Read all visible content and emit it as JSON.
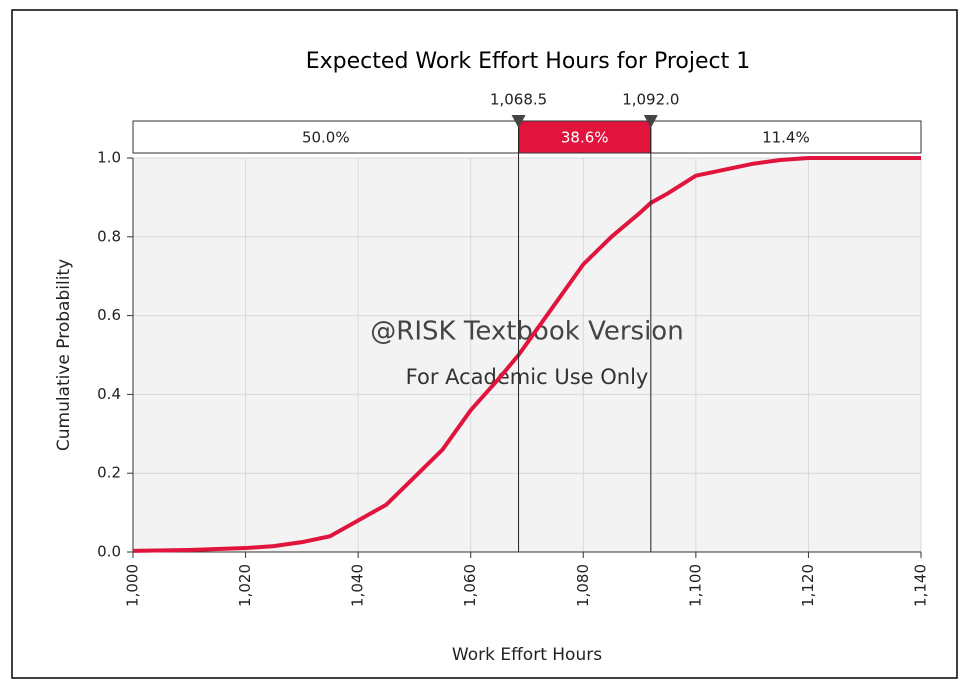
{
  "chart_data": {
    "type": "line",
    "title": "Expected Work Effort Hours for Project 1",
    "xlabel": "Work Effort Hours",
    "ylabel": "Cumulative  Probability",
    "annotations": [
      "@RISK Textbook Version",
      "For Academic Use Only"
    ],
    "x": [
      1000,
      1010,
      1020,
      1025,
      1030,
      1035,
      1040,
      1045,
      1050,
      1055,
      1060,
      1065,
      1068.5,
      1070,
      1075,
      1080,
      1085,
      1090,
      1092,
      1095,
      1100,
      1105,
      1110,
      1115,
      1120,
      1140
    ],
    "values": [
      0.003,
      0.005,
      0.01,
      0.015,
      0.025,
      0.04,
      0.08,
      0.12,
      0.19,
      0.26,
      0.36,
      0.44,
      0.5,
      0.53,
      0.63,
      0.73,
      0.8,
      0.86,
      0.886,
      0.91,
      0.955,
      0.97,
      0.985,
      0.995,
      1.0,
      1.0
    ],
    "color": "#e0143c",
    "xlim": [
      1000,
      1140
    ],
    "xticks": [
      {
        "value": 1000,
        "label": "1,000"
      },
      {
        "value": 1020,
        "label": "1,020"
      },
      {
        "value": 1040,
        "label": "1,040"
      },
      {
        "value": 1060,
        "label": "1,060"
      },
      {
        "value": 1080,
        "label": "1,080"
      },
      {
        "value": 1100,
        "label": "1,100"
      },
      {
        "value": 1120,
        "label": "1,120"
      },
      {
        "value": 1140,
        "label": "1,140"
      }
    ],
    "ylim": [
      0,
      1
    ],
    "yticks": [
      {
        "value": 0,
        "label": "0.0"
      },
      0.2,
      0.4,
      0.6,
      0.8,
      {
        "value": 1,
        "label": "1.0"
      }
    ],
    "grid": true,
    "delimiters": [
      {
        "value": 1068.5,
        "label": "1,068.5"
      },
      {
        "value": 1092,
        "label": "1,092.0"
      }
    ],
    "regions": [
      {
        "value": 50,
        "label": "50.0%"
      },
      {
        "value": 38.6,
        "label": "38.6%"
      },
      {
        "value": 11.4,
        "label": "11.4%"
      }
    ]
  }
}
